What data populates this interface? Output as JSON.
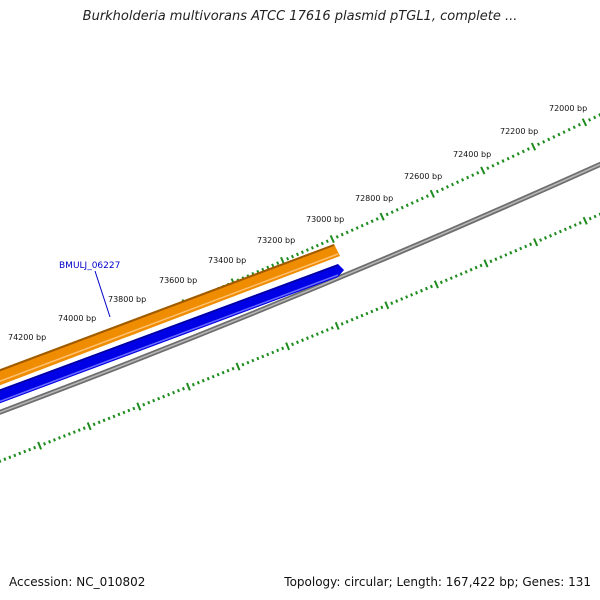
{
  "title": "Burkholderia multivorans ATCC 17616 plasmid pTGL1, complete ...",
  "footer": {
    "accession": "Accession: NC_010802",
    "summary": "Topology: circular; Length: 167,422 bp; Genes: 131"
  },
  "ticks": [
    {
      "label": "72000 bp"
    },
    {
      "label": "72200 bp"
    },
    {
      "label": "72400 bp"
    },
    {
      "label": "72600 bp"
    },
    {
      "label": "72800 bp"
    },
    {
      "label": "73000 bp"
    },
    {
      "label": "73200 bp"
    },
    {
      "label": "73400 bp"
    },
    {
      "label": "73600 bp"
    },
    {
      "label": "73800 bp"
    },
    {
      "label": "74000 bp"
    },
    {
      "label": "74200 bp"
    }
  ],
  "features": [
    {
      "name": "gene",
      "color": "#f08c00",
      "strand": "forward"
    },
    {
      "name": "CDS",
      "color": "#0000e6",
      "strand": "forward"
    }
  ],
  "gene_label": "BMULJ_06227",
  "colors": {
    "tick": "#1e8c1e",
    "backbone": "#808080",
    "gene": "#f08c00",
    "cds": "#0000e6",
    "label": "#0000c8"
  }
}
